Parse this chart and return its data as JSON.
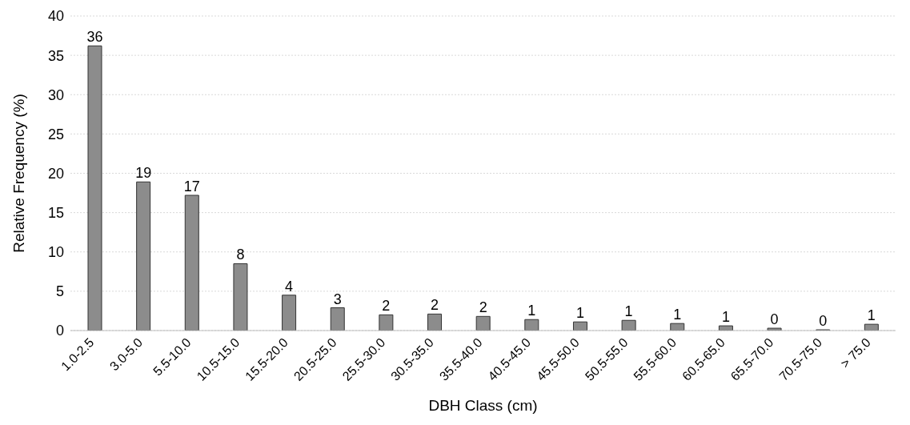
{
  "chart_data": {
    "type": "bar",
    "xlabel": "DBH Class (cm)",
    "ylabel": "Relative Frequency (%)",
    "categories": [
      "1.0-2.5",
      "3.0-5.0",
      "5.5-10.0",
      "10.5-15.0",
      "15.5-20.0",
      "20.5-25.0",
      "25.5-30.0",
      "30.5-35.0",
      "35.5-40.0",
      "40.5-45.0",
      "45.5-50.0",
      "50.5-55.0",
      "55.5-60.0",
      "60.5-65.0",
      "65.5-70.0",
      "70.5-75.0",
      "> 75.0"
    ],
    "values": [
      36.2,
      18.9,
      17.2,
      8.5,
      4.5,
      2.9,
      2.0,
      2.1,
      1.8,
      1.4,
      1.1,
      1.3,
      0.9,
      0.6,
      0.3,
      0.1,
      0.8
    ],
    "value_labels": [
      "36",
      "19",
      "17",
      "8",
      "4",
      "3",
      "2",
      "2",
      "2",
      "1",
      "1",
      "1",
      "1",
      "1",
      "0",
      "0",
      "1"
    ],
    "color": "#8c8c8c",
    "ylim": [
      0,
      40
    ],
    "yticks": [
      0,
      5,
      10,
      15,
      20,
      25,
      30,
      35,
      40
    ],
    "grid": "y"
  }
}
